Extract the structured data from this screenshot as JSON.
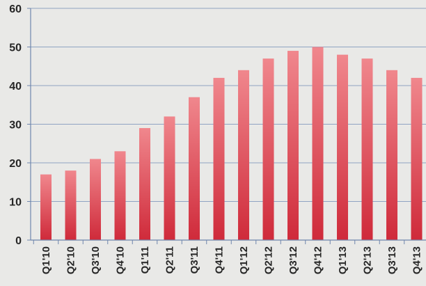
{
  "chart_data": {
    "type": "bar",
    "title": "",
    "xlabel": "",
    "ylabel": "",
    "ylim": [
      0,
      60
    ],
    "yticks": [
      0,
      10,
      20,
      30,
      40,
      50,
      60
    ],
    "grid": true,
    "legend": "none",
    "categories": [
      "Q1'10",
      "Q2'10",
      "Q3'10",
      "Q4'10",
      "Q1'11",
      "Q2'11",
      "Q3'11",
      "Q4'11",
      "Q1'12",
      "Q2'12",
      "Q3'12",
      "Q4'12",
      "Q1'13",
      "Q2'13",
      "Q3'13",
      "Q4'13"
    ],
    "values": [
      17,
      18,
      21,
      23,
      29,
      32,
      37,
      42,
      44,
      47,
      49,
      50,
      48,
      47,
      44,
      42
    ],
    "colors": {
      "bar_top": "#f0878d",
      "bar_bottom": "#cf2a3a",
      "grid": "#8fa3c2",
      "axis": "#6f86ad",
      "background": "#e9e9e7"
    }
  }
}
